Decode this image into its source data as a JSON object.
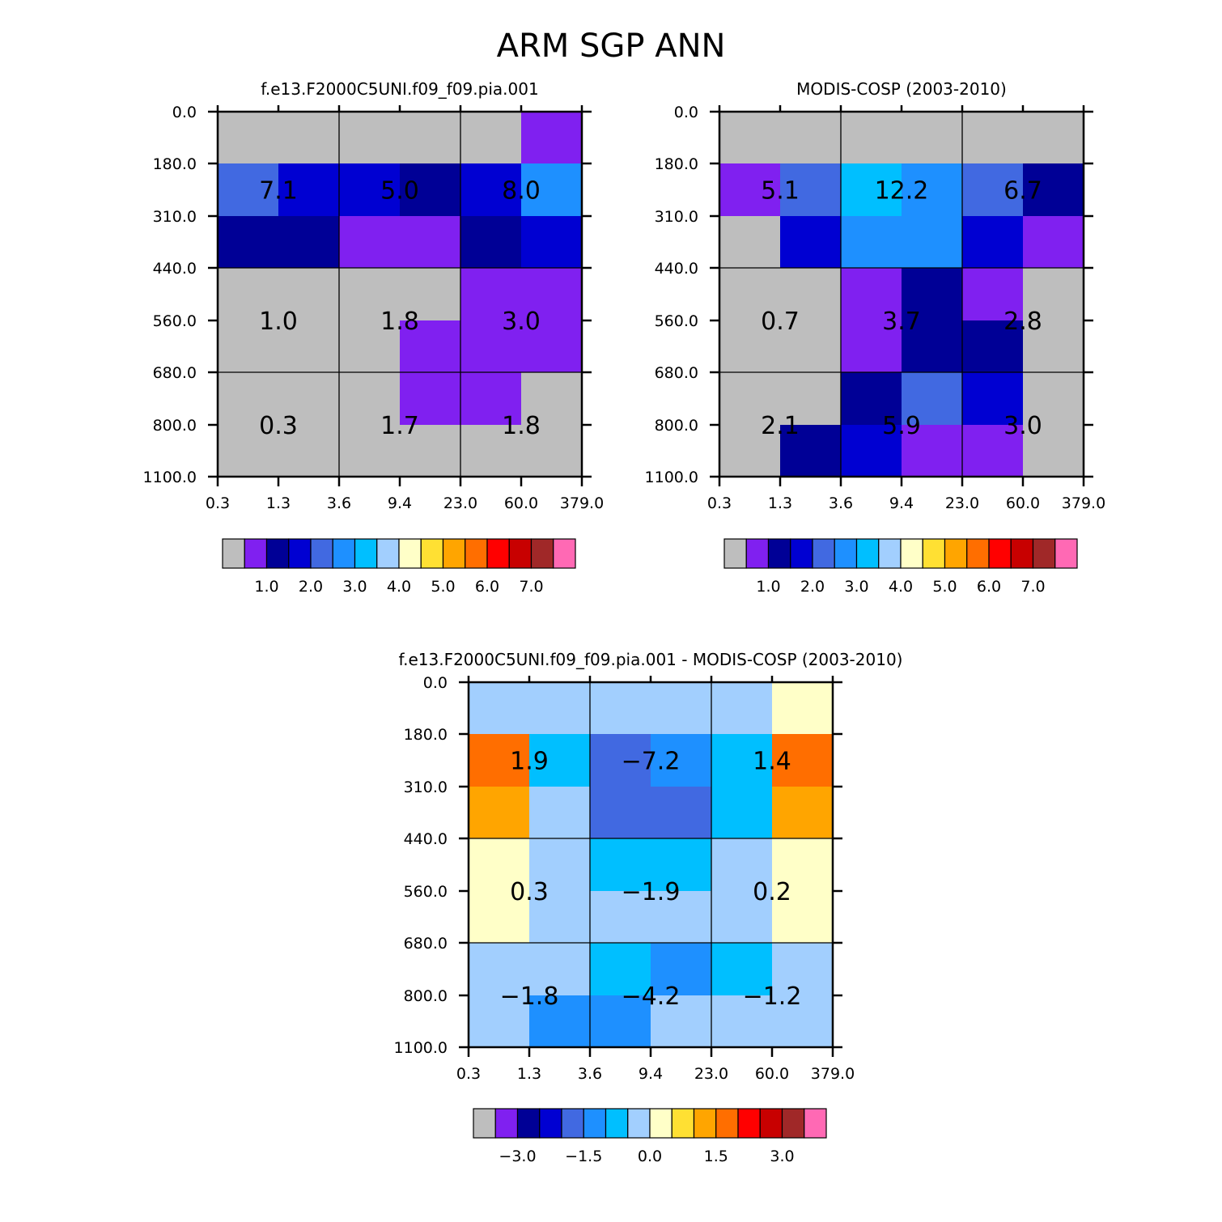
{
  "title": "ARM SGP ANN",
  "colors": {
    "gray": "#bebebe",
    "violet": "#8020f0",
    "navy": "#000096",
    "mediumblue": "#0000d2",
    "royalblue": "#4169e1",
    "dodgerblue": "#1e90ff",
    "deepskyblue": "#00bfff",
    "lightblue": "#a2cffe",
    "cream": "#ffffc8",
    "gold": "#ffe033",
    "orange": "#ffa500",
    "darkorange": "#ff6e00",
    "red": "#ff0000",
    "darkred": "#c80000",
    "brown": "#a02828",
    "pink": "#ff69b4"
  },
  "colorbar_palette": [
    "gray",
    "violet",
    "navy",
    "mediumblue",
    "royalblue",
    "dodgerblue",
    "deepskyblue",
    "lightblue",
    "cream",
    "gold",
    "orange",
    "darkorange",
    "red",
    "darkred",
    "brown",
    "pink"
  ],
  "chart_data": [
    {
      "type": "heatmap",
      "title": "f.e13.F2000C5UNI.f09_f09.pia.001",
      "x_ticks": [
        "0.3",
        "1.3",
        "3.6",
        "9.4",
        "23.0",
        "60.0",
        "379.0"
      ],
      "y_ticks": [
        "0.0",
        "180.0",
        "310.0",
        "440.0",
        "560.0",
        "680.0",
        "800.0",
        "1100.0"
      ],
      "cells": [
        [
          "gray",
          "gray",
          "gray",
          "gray",
          "gray",
          "violet"
        ],
        [
          "royalblue",
          "mediumblue",
          "mediumblue",
          "navy",
          "mediumblue",
          "dodgerblue"
        ],
        [
          "navy",
          "navy",
          "violet",
          "violet",
          "navy",
          "mediumblue"
        ],
        [
          "gray",
          "gray",
          "gray",
          "gray",
          "violet",
          "violet"
        ],
        [
          "gray",
          "gray",
          "gray",
          "violet",
          "violet",
          "violet"
        ],
        [
          "gray",
          "gray",
          "gray",
          "violet",
          "violet",
          "gray"
        ],
        [
          "gray",
          "gray",
          "gray",
          "gray",
          "gray",
          "gray"
        ]
      ],
      "box_labels": [
        [
          "7.1",
          "5.0",
          "8.0"
        ],
        [
          "1.0",
          "1.8",
          "3.0"
        ],
        [
          "0.3",
          "1.7",
          "1.8"
        ]
      ],
      "colorbar_labels": [
        "1.0",
        "2.0",
        "3.0",
        "4.0",
        "5.0",
        "6.0",
        "7.0"
      ]
    },
    {
      "type": "heatmap",
      "title": "MODIS-COSP (2003-2010)",
      "x_ticks": [
        "0.3",
        "1.3",
        "3.6",
        "9.4",
        "23.0",
        "60.0",
        "379.0"
      ],
      "y_ticks": [
        "0.0",
        "180.0",
        "310.0",
        "440.0",
        "560.0",
        "680.0",
        "800.0",
        "1100.0"
      ],
      "cells": [
        [
          "gray",
          "gray",
          "gray",
          "gray",
          "gray",
          "gray"
        ],
        [
          "violet",
          "royalblue",
          "deepskyblue",
          "dodgerblue",
          "royalblue",
          "navy"
        ],
        [
          "gray",
          "mediumblue",
          "dodgerblue",
          "dodgerblue",
          "mediumblue",
          "violet"
        ],
        [
          "gray",
          "gray",
          "violet",
          "navy",
          "violet",
          "gray"
        ],
        [
          "gray",
          "gray",
          "violet",
          "navy",
          "navy",
          "gray"
        ],
        [
          "gray",
          "gray",
          "navy",
          "royalblue",
          "mediumblue",
          "gray"
        ],
        [
          "gray",
          "navy",
          "mediumblue",
          "violet",
          "violet",
          "gray"
        ]
      ],
      "box_labels": [
        [
          "5.1",
          "12.2",
          "6.7"
        ],
        [
          "0.7",
          "3.7",
          "2.8"
        ],
        [
          "2.1",
          "5.9",
          "3.0"
        ]
      ],
      "colorbar_labels": [
        "1.0",
        "2.0",
        "3.0",
        "4.0",
        "5.0",
        "6.0",
        "7.0"
      ]
    },
    {
      "type": "heatmap",
      "title": "f.e13.F2000C5UNI.f09_f09.pia.001 - MODIS-COSP (2003-2010)",
      "x_ticks": [
        "0.3",
        "1.3",
        "3.6",
        "9.4",
        "23.0",
        "60.0",
        "379.0"
      ],
      "y_ticks": [
        "0.0",
        "180.0",
        "310.0",
        "440.0",
        "560.0",
        "680.0",
        "800.0",
        "1100.0"
      ],
      "cells": [
        [
          "lightblue",
          "lightblue",
          "lightblue",
          "lightblue",
          "lightblue",
          "cream"
        ],
        [
          "darkorange",
          "deepskyblue",
          "royalblue",
          "dodgerblue",
          "deepskyblue",
          "darkorange"
        ],
        [
          "orange",
          "lightblue",
          "royalblue",
          "royalblue",
          "deepskyblue",
          "orange"
        ],
        [
          "cream",
          "lightblue",
          "deepskyblue",
          "deepskyblue",
          "lightblue",
          "cream"
        ],
        [
          "cream",
          "lightblue",
          "lightblue",
          "lightblue",
          "lightblue",
          "cream"
        ],
        [
          "lightblue",
          "lightblue",
          "deepskyblue",
          "dodgerblue",
          "deepskyblue",
          "lightblue"
        ],
        [
          "lightblue",
          "dodgerblue",
          "dodgerblue",
          "lightblue",
          "lightblue",
          "lightblue"
        ]
      ],
      "box_labels": [
        [
          "1.9",
          "-7.2",
          "1.4"
        ],
        [
          "0.3",
          "-1.9",
          "0.2"
        ],
        [
          "-1.8",
          "-4.2",
          "-1.2"
        ]
      ],
      "colorbar_labels": [
        "-3.0",
        "-1.5",
        "0.0",
        "1.5",
        "3.0"
      ]
    }
  ]
}
